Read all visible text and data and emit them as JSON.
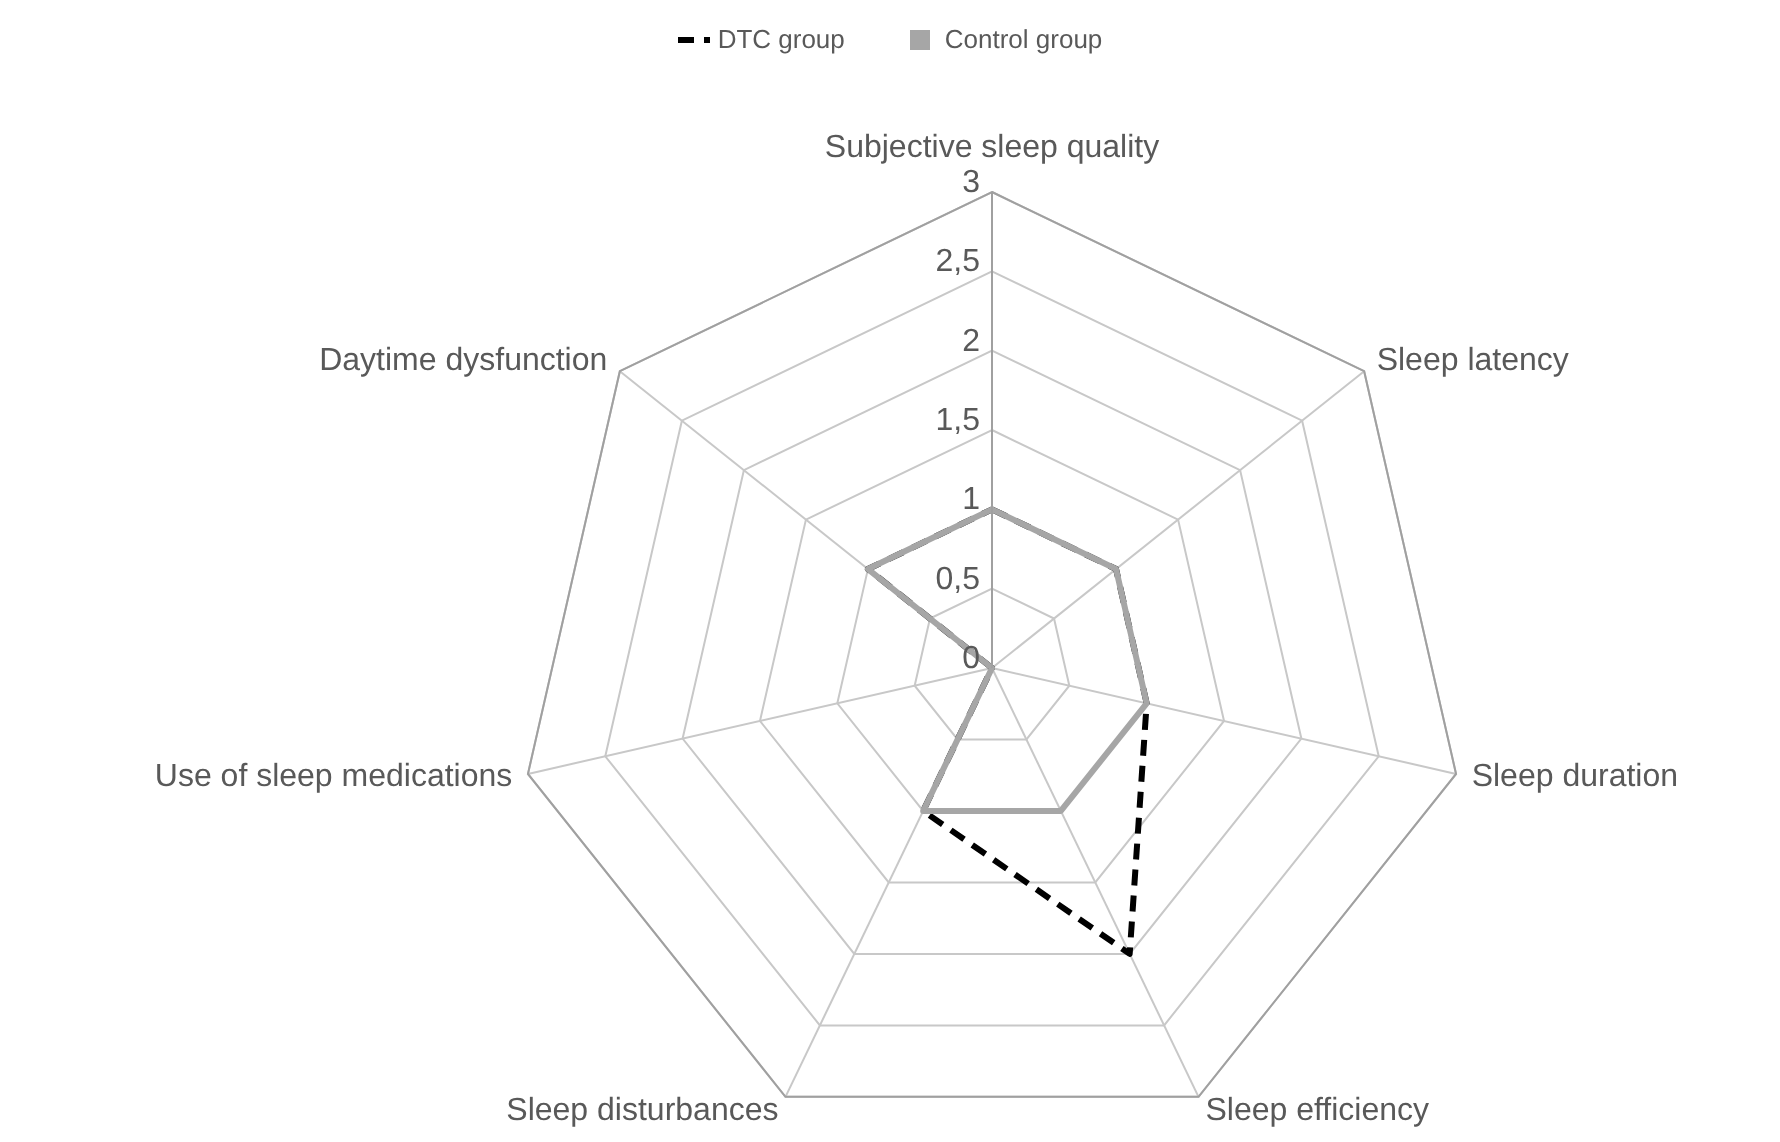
{
  "chart_data": {
    "type": "radar",
    "categories": [
      "Subjective sleep quality",
      "Sleep latency",
      "Sleep duration",
      "Sleep efficiency",
      "Sleep disturbances",
      "Use of sleep medications",
      "Daytime dysfunction"
    ],
    "series": [
      {
        "name": "DTC group",
        "color": "#000000",
        "line_style": "dashed",
        "values": [
          1,
          1,
          1,
          2,
          1,
          0,
          1
        ]
      },
      {
        "name": "Control group",
        "color": "#a6a6a6",
        "line_style": "solid",
        "values": [
          1,
          1,
          1,
          1,
          1,
          0,
          1
        ]
      }
    ],
    "ylim": [
      0,
      3
    ],
    "yticks": [
      0,
      {
        "value": 0.5,
        "label": "0,5"
      },
      1,
      {
        "value": 1.5,
        "label": "1,5"
      },
      2,
      {
        "value": 2.5,
        "label": "2,5"
      },
      3
    ],
    "grid": true,
    "legend": "top",
    "marker": "none"
  }
}
